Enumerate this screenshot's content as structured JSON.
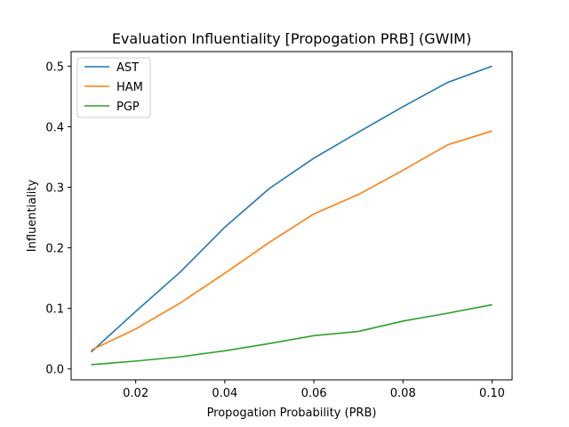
{
  "chart_data": {
    "type": "line",
    "title": "Evaluation Influentiality [Propogation PRB] (GWIM)",
    "xlabel": "Propogation Probability (PRB)",
    "ylabel": "Influentiality",
    "x": [
      0.01,
      0.02,
      0.03,
      0.04,
      0.05,
      0.06,
      0.07,
      0.08,
      0.09,
      0.1
    ],
    "xlim": [
      0.0055,
      0.1045
    ],
    "ylim": [
      -0.018,
      0.524
    ],
    "xticks": [
      0.02,
      0.04,
      0.06,
      0.08,
      0.1
    ],
    "xtick_labels": [
      "0.02",
      "0.04",
      "0.06",
      "0.08",
      "0.10"
    ],
    "yticks": [
      0.0,
      0.1,
      0.2,
      0.3,
      0.4,
      0.5
    ],
    "ytick_labels": [
      "0.0",
      "0.1",
      "0.2",
      "0.3",
      "0.4",
      "0.5"
    ],
    "grid": false,
    "legend_position": "top-left",
    "series": [
      {
        "name": "AST",
        "color": "#1f77b4",
        "values": [
          0.028,
          0.095,
          0.16,
          0.234,
          0.298,
          0.348,
          0.391,
          0.433,
          0.473,
          0.5
        ]
      },
      {
        "name": "HAM",
        "color": "#ff7f0e",
        "values": [
          0.031,
          0.066,
          0.109,
          0.158,
          0.209,
          0.256,
          0.288,
          0.328,
          0.37,
          0.393
        ]
      },
      {
        "name": "PGP",
        "color": "#2ca02c",
        "values": [
          0.007,
          0.013,
          0.02,
          0.03,
          0.042,
          0.055,
          0.062,
          0.079,
          0.092,
          0.106
        ]
      }
    ]
  }
}
